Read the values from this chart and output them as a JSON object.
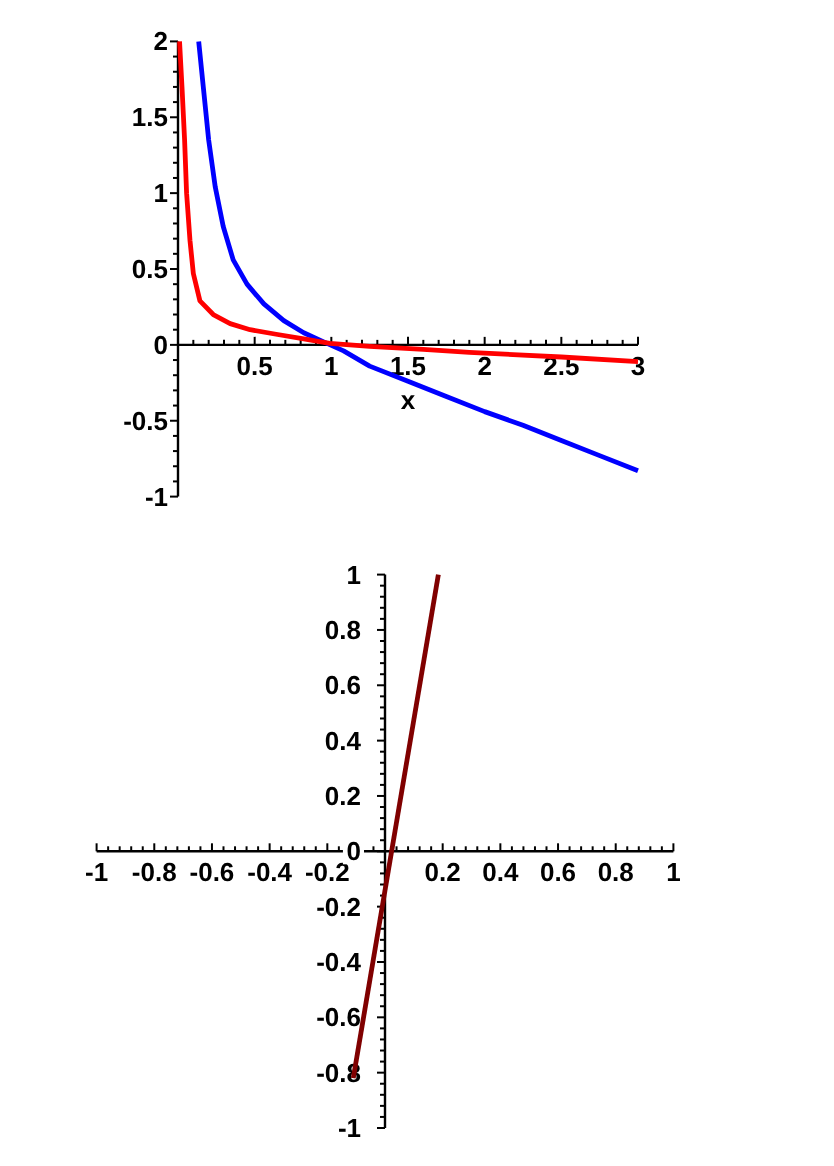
{
  "chart_data": [
    {
      "type": "line",
      "xlabel": "x",
      "series": [
        {
          "color": "#0000ff",
          "x": [
            0.135,
            0.165,
            0.2,
            0.243,
            0.295,
            0.36,
            0.45,
            0.56,
            0.69,
            0.82,
            0.95,
            1.08,
            1.25,
            1.5,
            1.75,
            2.0,
            2.25,
            2.5,
            2.75,
            3.0
          ],
          "values": [
            2.0,
            1.7,
            1.35,
            1.04,
            0.78,
            0.56,
            0.4,
            0.27,
            0.16,
            0.08,
            0.02,
            -0.04,
            -0.14,
            -0.24,
            -0.34,
            -0.44,
            -0.53,
            -0.63,
            -0.73,
            -0.83
          ]
        },
        {
          "color": "#ff0000",
          "x": [
            0.01,
            0.026,
            0.043,
            0.056,
            0.078,
            0.1,
            0.143,
            0.23,
            0.34,
            0.47,
            0.64,
            0.82,
            0.99,
            1.25,
            1.6,
            1.9,
            2.5,
            3.0
          ],
          "values": [
            2.0,
            1.7,
            1.35,
            1.0,
            0.69,
            0.47,
            0.29,
            0.2,
            0.14,
            0.1,
            0.07,
            0.04,
            0.01,
            -0.01,
            -0.03,
            -0.05,
            -0.08,
            -0.11
          ]
        }
      ],
      "xlim": [
        0,
        3
      ],
      "ylim": [
        -1,
        2
      ],
      "xticks": [
        {
          "value": 0.1,
          "label": null
        },
        {
          "value": 0.2,
          "label": null
        },
        {
          "value": 0.3,
          "label": null
        },
        {
          "value": 0.4,
          "label": null
        },
        0.5,
        {
          "value": 0.6,
          "label": null
        },
        {
          "value": 0.7,
          "label": null
        },
        {
          "value": 0.8,
          "label": null
        },
        {
          "value": 0.9,
          "label": null
        },
        1,
        {
          "value": 1.1,
          "label": null
        },
        {
          "value": 1.2,
          "label": null
        },
        {
          "value": 1.3,
          "label": null
        },
        {
          "value": 1.4,
          "label": null
        },
        1.5,
        {
          "value": 1.6,
          "label": null
        },
        {
          "value": 1.7,
          "label": null
        },
        {
          "value": 1.8,
          "label": null
        },
        {
          "value": 1.9,
          "label": null
        },
        2,
        {
          "value": 2.1,
          "label": null
        },
        {
          "value": 2.2,
          "label": null
        },
        {
          "value": 2.3,
          "label": null
        },
        {
          "value": 2.4,
          "label": null
        },
        2.5,
        {
          "value": 2.6,
          "label": null
        },
        {
          "value": 2.7,
          "label": null
        },
        {
          "value": 2.8,
          "label": null
        },
        {
          "value": 2.9,
          "label": null
        },
        3
      ],
      "yticks": [
        -1,
        {
          "value": -0.9,
          "label": null
        },
        {
          "value": -0.8,
          "label": null
        },
        {
          "value": -0.7,
          "label": null
        },
        {
          "value": -0.6,
          "label": null
        },
        -0.5,
        {
          "value": -0.4,
          "label": null
        },
        {
          "value": -0.3,
          "label": null
        },
        {
          "value": -0.2,
          "label": null
        },
        {
          "value": -0.1,
          "label": null
        },
        0,
        {
          "value": 0.1,
          "label": null
        },
        {
          "value": 0.2,
          "label": null
        },
        {
          "value": 0.3,
          "label": null
        },
        {
          "value": 0.4,
          "label": null
        },
        0.5,
        {
          "value": 0.6,
          "label": null
        },
        {
          "value": 0.7,
          "label": null
        },
        {
          "value": 0.8,
          "label": null
        },
        {
          "value": 0.9,
          "label": null
        },
        1,
        {
          "value": 1.1,
          "label": null
        },
        {
          "value": 1.2,
          "label": null
        },
        {
          "value": 1.3,
          "label": null
        },
        {
          "value": 1.4,
          "label": null
        },
        1.5,
        {
          "value": 1.6,
          "label": null
        },
        {
          "value": 1.7,
          "label": null
        },
        {
          "value": 1.8,
          "label": null
        },
        {
          "value": 1.9,
          "label": null
        },
        2
      ]
    },
    {
      "type": "line",
      "series": [
        {
          "color": "#800000",
          "x": [
            -0.11,
            0.185
          ],
          "values": [
            -0.82,
            1.0
          ]
        }
      ],
      "xlim": [
        -1,
        1
      ],
      "ylim": [
        -1,
        1
      ],
      "xticks": [
        -1,
        {
          "value": -0.96,
          "label": null
        },
        {
          "value": -0.92,
          "label": null
        },
        {
          "value": -0.88,
          "label": null
        },
        {
          "value": -0.84,
          "label": null
        },
        -0.8,
        {
          "value": -0.76,
          "label": null
        },
        {
          "value": -0.72,
          "label": null
        },
        {
          "value": -0.68,
          "label": null
        },
        {
          "value": -0.64,
          "label": null
        },
        -0.6,
        {
          "value": -0.56,
          "label": null
        },
        {
          "value": -0.52,
          "label": null
        },
        {
          "value": -0.48,
          "label": null
        },
        {
          "value": -0.44,
          "label": null
        },
        -0.4,
        {
          "value": -0.36,
          "label": null
        },
        {
          "value": -0.32,
          "label": null
        },
        {
          "value": -0.28,
          "label": null
        },
        {
          "value": -0.24,
          "label": null
        },
        -0.2,
        {
          "value": -0.16,
          "label": null
        },
        {
          "value": -0.12,
          "label": null
        },
        {
          "value": -0.08,
          "label": null
        },
        {
          "value": -0.04,
          "label": null
        },
        {
          "value": 0.04,
          "label": null
        },
        {
          "value": 0.08,
          "label": null
        },
        {
          "value": 0.12,
          "label": null
        },
        {
          "value": 0.16,
          "label": null
        },
        0.2,
        {
          "value": 0.24,
          "label": null
        },
        {
          "value": 0.28,
          "label": null
        },
        {
          "value": 0.32,
          "label": null
        },
        {
          "value": 0.36,
          "label": null
        },
        0.4,
        {
          "value": 0.44,
          "label": null
        },
        {
          "value": 0.48,
          "label": null
        },
        {
          "value": 0.52,
          "label": null
        },
        {
          "value": 0.56,
          "label": null
        },
        0.6,
        {
          "value": 0.64,
          "label": null
        },
        {
          "value": 0.68,
          "label": null
        },
        {
          "value": 0.72,
          "label": null
        },
        {
          "value": 0.76,
          "label": null
        },
        0.8,
        {
          "value": 0.84,
          "label": null
        },
        {
          "value": 0.88,
          "label": null
        },
        {
          "value": 0.92,
          "label": null
        },
        {
          "value": 0.96,
          "label": null
        },
        1
      ],
      "yticks": [
        -1,
        {
          "value": -0.96,
          "label": null
        },
        {
          "value": -0.92,
          "label": null
        },
        {
          "value": -0.88,
          "label": null
        },
        {
          "value": -0.84,
          "label": null
        },
        -0.8,
        {
          "value": -0.76,
          "label": null
        },
        {
          "value": -0.72,
          "label": null
        },
        {
          "value": -0.68,
          "label": null
        },
        {
          "value": -0.64,
          "label": null
        },
        -0.6,
        {
          "value": -0.56,
          "label": null
        },
        {
          "value": -0.52,
          "label": null
        },
        {
          "value": -0.48,
          "label": null
        },
        {
          "value": -0.44,
          "label": null
        },
        -0.4,
        {
          "value": -0.36,
          "label": null
        },
        {
          "value": -0.32,
          "label": null
        },
        {
          "value": -0.28,
          "label": null
        },
        {
          "value": -0.24,
          "label": null
        },
        -0.2,
        {
          "value": -0.16,
          "label": null
        },
        {
          "value": -0.12,
          "label": null
        },
        {
          "value": -0.08,
          "label": null
        },
        {
          "value": -0.04,
          "label": null
        },
        0,
        {
          "value": 0.04,
          "label": null
        },
        {
          "value": 0.08,
          "label": null
        },
        {
          "value": 0.12,
          "label": null
        },
        {
          "value": 0.16,
          "label": null
        },
        0.2,
        {
          "value": 0.24,
          "label": null
        },
        {
          "value": 0.28,
          "label": null
        },
        {
          "value": 0.32,
          "label": null
        },
        {
          "value": 0.36,
          "label": null
        },
        0.4,
        {
          "value": 0.44,
          "label": null
        },
        {
          "value": 0.48,
          "label": null
        },
        {
          "value": 0.52,
          "label": null
        },
        {
          "value": 0.56,
          "label": null
        },
        0.6,
        {
          "value": 0.64,
          "label": null
        },
        {
          "value": 0.68,
          "label": null
        },
        {
          "value": 0.72,
          "label": null
        },
        {
          "value": 0.76,
          "label": null
        },
        0.8,
        {
          "value": 0.84,
          "label": null
        },
        {
          "value": 0.88,
          "label": null
        },
        {
          "value": 0.92,
          "label": null
        },
        {
          "value": 0.96,
          "label": null
        },
        1
      ]
    }
  ]
}
